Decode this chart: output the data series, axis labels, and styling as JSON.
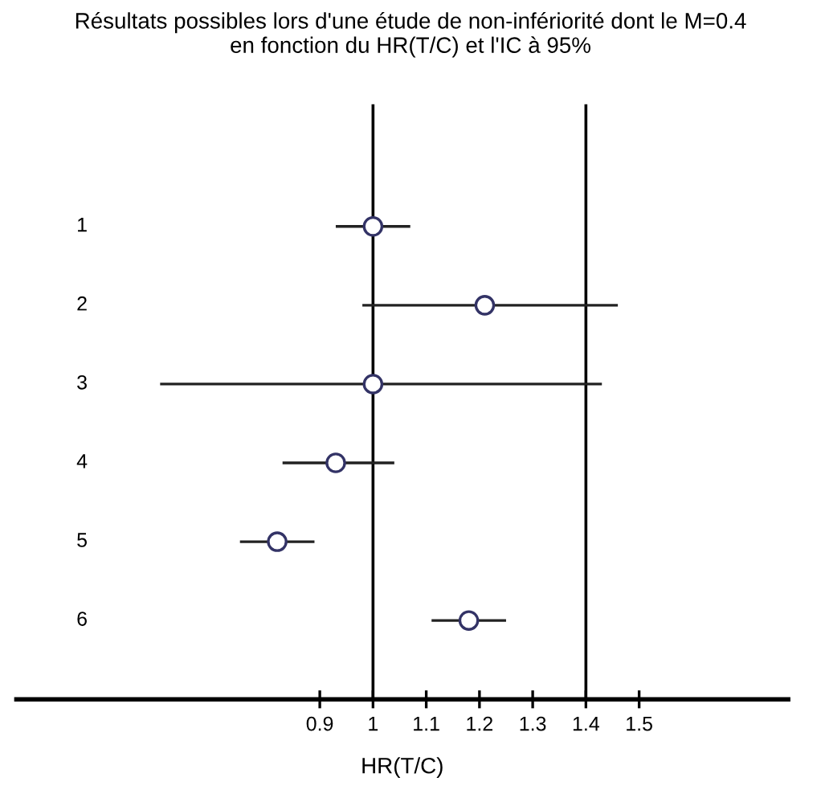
{
  "chart_data": {
    "type": "scatter",
    "orientation": "horizontal",
    "title": "Résultats possibles lors d'une étude de non-infériorité dont le M=0.4\nen fonction du HR(T/C) et l'IC à 95%",
    "xlabel": "HR(T/C)",
    "categories": [
      "1",
      "2",
      "3",
      "4",
      "5",
      "6"
    ],
    "values": [
      1.0,
      1.21,
      1.0,
      0.93,
      0.82,
      1.18
    ],
    "errors": [
      [
        0.93,
        1.07
      ],
      [
        0.98,
        1.46
      ],
      [
        0.6,
        1.43
      ],
      [
        0.83,
        1.04
      ],
      [
        0.75,
        0.89
      ],
      [
        1.11,
        1.25
      ]
    ],
    "color": "#333366",
    "marker": "circle",
    "xlim": [
      0.33,
      1.78
    ],
    "xticks": [
      0.9,
      1,
      1.1,
      1.2,
      1.3,
      1.4,
      1.5
    ],
    "ref_lines": [
      {
        "axis": "x",
        "value": 1,
        "color": "#000000"
      },
      {
        "axis": "x",
        "value": 1.4,
        "color": "#000000"
      }
    ],
    "grid": false,
    "legend": false
  }
}
